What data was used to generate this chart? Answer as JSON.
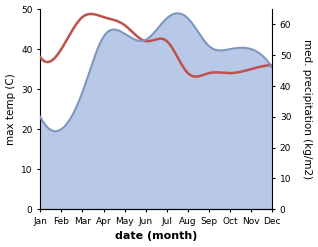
{
  "months": [
    "Jan",
    "Feb",
    "Mar",
    "Apr",
    "May",
    "Jun",
    "Jul",
    "Aug",
    "Sep",
    "Oct",
    "Nov",
    "Dec"
  ],
  "max_temp": [
    38,
    40,
    48,
    48,
    46,
    42,
    42,
    34,
    34,
    34,
    35,
    36
  ],
  "precipitation": [
    30,
    26,
    38,
    56,
    57,
    55,
    62,
    62,
    53,
    52,
    52,
    46
  ],
  "temp_color": "#c0504d",
  "precip_fill_color": "#b8c9e8",
  "precip_line_color": "#8096c0",
  "ylim_left": [
    0,
    50
  ],
  "ylim_right": [
    0,
    65
  ],
  "yticks_left": [
    0,
    10,
    20,
    30,
    40,
    50
  ],
  "yticks_right": [
    0,
    10,
    20,
    30,
    40,
    50,
    60
  ],
  "xlabel": "date (month)",
  "ylabel_left": "max temp (C)",
  "ylabel_right": "med. precipitation (kg/m2)",
  "bg_color": "#ffffff",
  "fig_width": 3.18,
  "fig_height": 2.47,
  "dpi": 100
}
